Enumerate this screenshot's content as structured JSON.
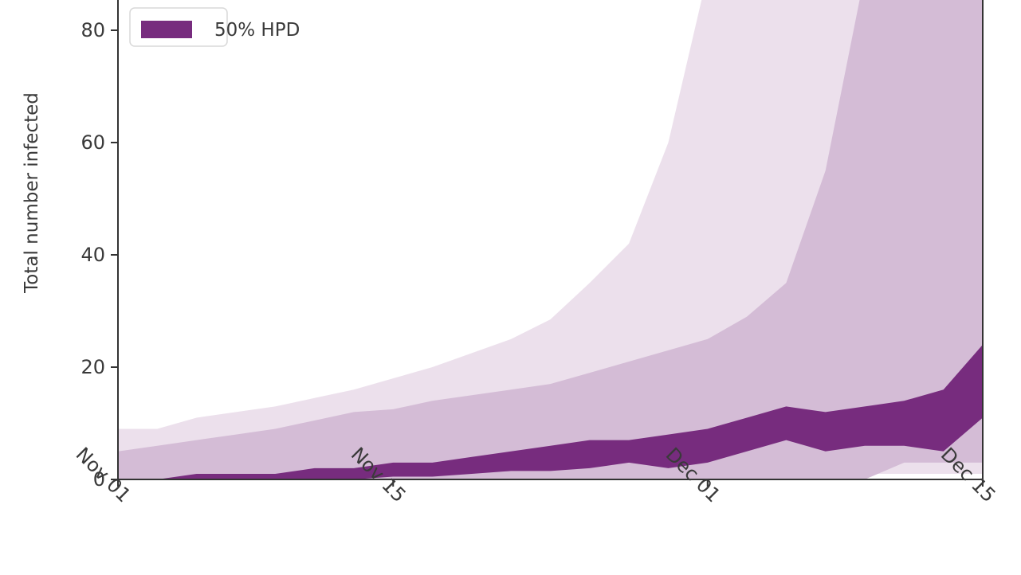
{
  "chart_data": {
    "type": "area",
    "ylabel": "Total number infected",
    "xlabel": "",
    "ylim": [
      0,
      85
    ],
    "y_ticks": [
      0,
      20,
      40,
      60,
      80
    ],
    "x_ticks": [
      "Nov 01",
      "Nov 15",
      "Dec 01",
      "Dec 15"
    ],
    "x": [
      "Nov 01",
      "Nov 03",
      "Nov 05",
      "Nov 07",
      "Nov 09",
      "Nov 11",
      "Nov 13",
      "Nov 15",
      "Nov 17",
      "Nov 19",
      "Nov 21",
      "Nov 23",
      "Nov 25",
      "Nov 27",
      "Nov 29",
      "Dec 01",
      "Dec 03",
      "Dec 05",
      "Dec 07",
      "Dec 09",
      "Dec 11",
      "Dec 13",
      "Dec 15"
    ],
    "legend": {
      "location": "upper left",
      "entries": [
        "50% HPD"
      ]
    },
    "colors": {
      "band_outer": "#ece0ec",
      "band_middle": "#d4bcd6",
      "band_inner": "#772c7e",
      "axis": "#333333"
    },
    "series": [
      {
        "name": "",
        "lower": [
          0,
          0,
          0,
          0,
          0,
          0,
          0,
          0,
          0,
          0,
          0.5,
          0.5,
          0.5,
          0.5,
          0.5,
          1,
          1,
          1,
          1,
          1,
          1,
          1,
          1
        ],
        "upper": [
          9,
          9,
          11,
          12,
          13,
          14.5,
          16,
          18,
          20,
          22.5,
          25,
          28.5,
          35,
          42,
          60,
          90,
          120,
          150,
          180,
          210,
          240,
          270,
          300
        ]
      },
      {
        "name": "",
        "lower": [
          0,
          0,
          0,
          0,
          0,
          0,
          0,
          0,
          0,
          0,
          0,
          0,
          0,
          0,
          0,
          0,
          0,
          0,
          0,
          0,
          3,
          3,
          3
        ],
        "upper": [
          5,
          6,
          7,
          8,
          9,
          10.5,
          12,
          12.5,
          14,
          15,
          16,
          17,
          19,
          21,
          23,
          25,
          29,
          35,
          55,
          90,
          130,
          170,
          210
        ]
      },
      {
        "name": "50% HPD",
        "lower": [
          0,
          0,
          0,
          0,
          0,
          0,
          0,
          0.5,
          0.5,
          1,
          1.5,
          1.5,
          2,
          3,
          2,
          3,
          5,
          7,
          5,
          6,
          6,
          5,
          11
        ],
        "upper": [
          0,
          0,
          1,
          1,
          1,
          2,
          2,
          3,
          3,
          4,
          5,
          6,
          7,
          7,
          8,
          9,
          11,
          13,
          12,
          13,
          14,
          16,
          24
        ]
      }
    ]
  }
}
